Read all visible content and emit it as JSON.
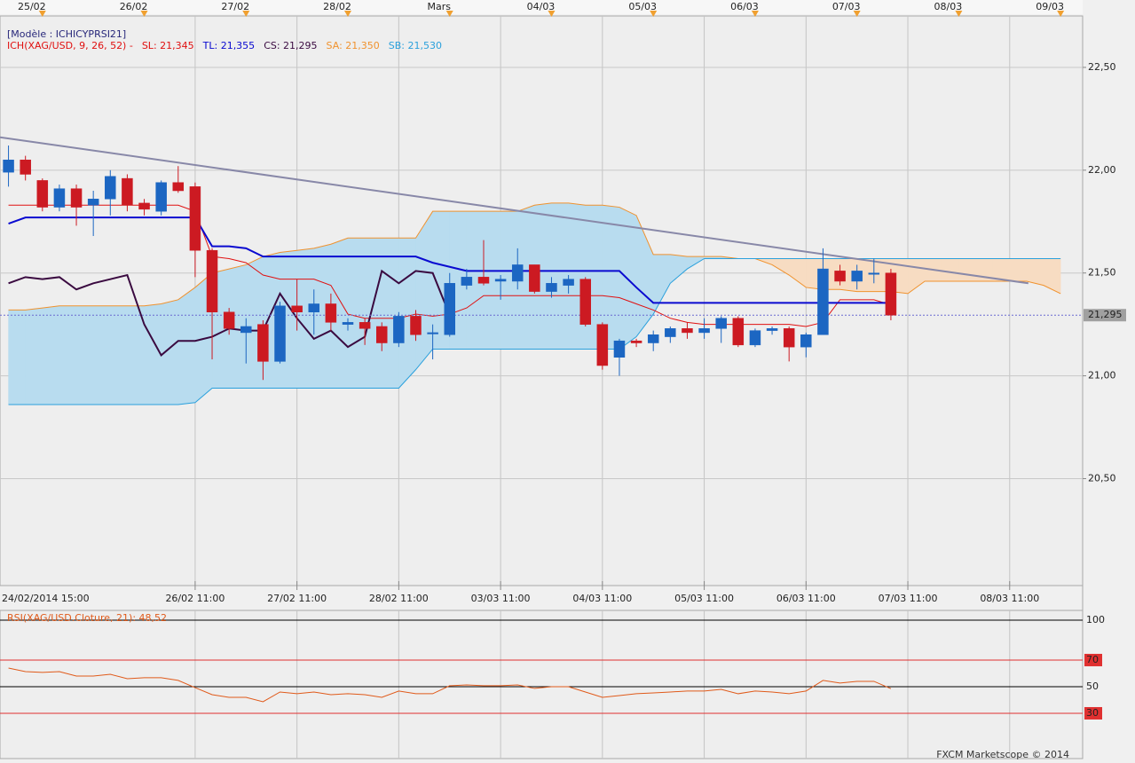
{
  "chart_data": [
    {
      "type": "candlestick",
      "legend_title": "[Modèle : ICHICYPRSI21]",
      "legend_prefix": "ICH(XAG/USD, 9, 26, 52) -",
      "up_color": "#1c66c2",
      "down_color": "#cc1a22",
      "open": [
        21.99,
        22.05,
        21.95,
        21.82,
        21.91,
        21.83,
        21.86,
        21.96,
        21.84,
        21.8,
        21.94,
        21.92,
        21.61,
        21.31,
        21.21,
        21.25,
        21.07,
        21.34,
        21.31,
        21.35,
        21.25,
        21.26,
        21.24,
        21.16,
        21.29,
        21.21,
        21.2,
        21.44,
        21.48,
        21.46,
        21.46,
        21.54,
        21.41,
        21.44,
        21.47,
        21.25,
        21.09,
        21.17,
        21.16,
        21.19,
        21.23,
        21.21,
        21.23,
        21.28,
        21.15,
        21.22,
        21.23,
        21.14,
        21.2,
        21.51,
        21.46,
        21.5,
        21.5
      ],
      "high": [
        22.12,
        22.07,
        21.96,
        21.93,
        21.93,
        21.9,
        22.0,
        21.98,
        21.86,
        21.95,
        22.02,
        21.94,
        21.62,
        21.33,
        21.28,
        21.27,
        21.36,
        21.47,
        21.42,
        21.4,
        21.28,
        21.28,
        21.26,
        21.31,
        21.32,
        21.25,
        21.5,
        21.52,
        21.66,
        21.49,
        21.62,
        21.54,
        21.48,
        21.49,
        21.48,
        21.26,
        21.18,
        21.18,
        21.22,
        21.24,
        21.26,
        21.28,
        21.29,
        21.29,
        21.23,
        21.24,
        21.24,
        21.21,
        21.62,
        21.54,
        21.54,
        21.57,
        21.52
      ],
      "low": [
        21.92,
        21.95,
        21.8,
        21.8,
        21.73,
        21.68,
        21.78,
        21.8,
        21.78,
        21.78,
        21.89,
        21.48,
        21.08,
        21.2,
        21.06,
        20.98,
        21.06,
        21.22,
        21.2,
        21.22,
        21.22,
        21.15,
        21.12,
        21.14,
        21.17,
        21.08,
        21.19,
        21.42,
        21.44,
        21.37,
        21.42,
        21.4,
        21.38,
        21.4,
        21.24,
        21.03,
        21.0,
        21.14,
        21.12,
        21.16,
        21.18,
        21.18,
        21.16,
        21.14,
        21.14,
        21.2,
        21.07,
        21.09,
        21.2,
        21.44,
        21.42,
        21.45,
        21.27
      ],
      "close": [
        22.05,
        21.98,
        21.82,
        21.91,
        21.82,
        21.86,
        21.97,
        21.83,
        21.81,
        21.94,
        21.9,
        21.61,
        21.31,
        21.23,
        21.24,
        21.07,
        21.34,
        21.31,
        21.35,
        21.26,
        21.26,
        21.23,
        21.16,
        21.29,
        21.2,
        21.21,
        21.45,
        21.48,
        21.45,
        21.47,
        21.54,
        21.41,
        21.45,
        21.47,
        21.25,
        21.05,
        21.17,
        21.16,
        21.2,
        21.23,
        21.21,
        21.23,
        21.28,
        21.15,
        21.22,
        21.23,
        21.14,
        21.2,
        21.52,
        21.46,
        21.51,
        21.5,
        21.295
      ],
      "series": [
        {
          "name": "SL: 21,345",
          "color": "#e01010",
          "width": 1,
          "values": [
            21.83,
            21.83,
            21.83,
            21.83,
            21.83,
            21.83,
            21.83,
            21.83,
            21.83,
            21.83,
            21.83,
            21.8,
            21.58,
            21.57,
            21.55,
            21.49,
            21.47,
            21.47,
            21.47,
            21.44,
            21.3,
            21.28,
            21.28,
            21.28,
            21.3,
            21.29,
            21.3,
            21.33,
            21.39,
            21.39,
            21.39,
            21.39,
            21.39,
            21.39,
            21.39,
            21.39,
            21.38,
            21.35,
            21.32,
            21.28,
            21.26,
            21.25,
            21.25,
            21.25,
            21.25,
            21.25,
            21.25,
            21.24,
            21.26,
            21.37,
            21.37,
            21.37,
            21.345
          ]
        },
        {
          "name": "TL: 21,355",
          "color": "#0a0ad0",
          "width": 2,
          "values": [
            21.74,
            21.77,
            21.77,
            21.77,
            21.77,
            21.77,
            21.77,
            21.77,
            21.77,
            21.77,
            21.77,
            21.77,
            21.63,
            21.63,
            21.62,
            21.58,
            21.58,
            21.58,
            21.58,
            21.58,
            21.58,
            21.58,
            21.58,
            21.58,
            21.58,
            21.55,
            21.53,
            21.51,
            21.51,
            21.51,
            21.51,
            21.51,
            21.51,
            21.51,
            21.51,
            21.51,
            21.51,
            21.43,
            21.355,
            21.355,
            21.355,
            21.355,
            21.355,
            21.355,
            21.355,
            21.355,
            21.355,
            21.355,
            21.355,
            21.355,
            21.355,
            21.355,
            21.355
          ]
        },
        {
          "name": "CS: 21,295",
          "color": "#3a0a40",
          "width": 2,
          "values": [
            21.45,
            21.48,
            21.47,
            21.48,
            21.42,
            21.45,
            21.47,
            21.49,
            21.25,
            21.1,
            21.17,
            21.17,
            21.19,
            21.23,
            21.22,
            21.22,
            21.4,
            21.28,
            21.18,
            21.22,
            21.14,
            21.19,
            21.51,
            21.45,
            21.51,
            21.5,
            21.295
          ]
        },
        {
          "name": "SA: 21,350",
          "color": "#f0922e",
          "width": 1,
          "values": [
            21.32,
            21.32,
            21.33,
            21.34,
            21.34,
            21.34,
            21.34,
            21.34,
            21.34,
            21.35,
            21.37,
            21.43,
            21.5,
            21.52,
            21.54,
            21.58,
            21.6,
            21.61,
            21.62,
            21.64,
            21.67,
            21.67,
            21.67,
            21.67,
            21.67,
            21.8,
            21.8,
            21.8,
            21.8,
            21.8,
            21.8,
            21.83,
            21.84,
            21.84,
            21.83,
            21.83,
            21.82,
            21.78,
            21.59,
            21.59,
            21.58,
            21.58,
            21.58,
            21.57,
            21.57,
            21.54,
            21.49,
            21.43,
            21.42,
            21.42,
            21.41,
            21.41,
            21.41,
            21.4,
            21.46,
            21.46,
            21.46,
            21.46,
            21.46,
            21.46,
            21.46,
            21.44,
            21.4
          ]
        },
        {
          "name": "SB: 21,530",
          "color": "#2aa0dc",
          "width": 1,
          "values": [
            20.86,
            20.86,
            20.86,
            20.86,
            20.86,
            20.86,
            20.86,
            20.86,
            20.86,
            20.86,
            20.86,
            20.87,
            20.94,
            20.94,
            20.94,
            20.94,
            20.94,
            20.94,
            20.94,
            20.94,
            20.94,
            20.94,
            20.94,
            20.94,
            21.03,
            21.13,
            21.13,
            21.13,
            21.13,
            21.13,
            21.13,
            21.13,
            21.13,
            21.13,
            21.13,
            21.13,
            21.13,
            21.19,
            21.3,
            21.45,
            21.52,
            21.57,
            21.57,
            21.57,
            21.57,
            21.57,
            21.57,
            21.57,
            21.57,
            21.57,
            21.57,
            21.57,
            21.57,
            21.57,
            21.57,
            21.57,
            21.57,
            21.57,
            21.57,
            21.57,
            21.57,
            21.57,
            21.57
          ]
        }
      ],
      "cloud_colors": {
        "up": "#b8dcef",
        "down": "#f7dcc2"
      },
      "trendline": {
        "x": [
          -0.5,
          60.1
        ],
        "values": [
          22.16,
          21.45
        ],
        "color": "#8888a8"
      },
      "last_price": {
        "value": 21.295,
        "label": "21,295",
        "color": "#6a6ad0"
      },
      "xlim": [
        -0.5,
        63.3
      ],
      "ylim": [
        19.98,
        22.75
      ],
      "yticks": [
        {
          "value": 20.5,
          "label": "20,50"
        },
        {
          "value": 21,
          "label": "21,00"
        },
        {
          "value": 21.5,
          "label": "21,50"
        },
        {
          "value": 22,
          "label": "22,00"
        },
        {
          "value": 22.5,
          "label": "22,50"
        }
      ],
      "xticks": [
        {
          "value": 0,
          "label": "24/02/2014 15:00"
        },
        {
          "value": 11,
          "label": "26/02 11:00"
        },
        {
          "value": 17,
          "label": "27/02 11:00"
        },
        {
          "value": 23,
          "label": "28/02 11:00"
        },
        {
          "value": 29,
          "label": "03/03 11:00"
        },
        {
          "value": 35,
          "label": "04/03 11:00"
        },
        {
          "value": 41,
          "label": "05/03 11:00"
        },
        {
          "value": 47,
          "label": "06/03 11:00"
        },
        {
          "value": 53,
          "label": "07/03 11:00"
        },
        {
          "value": 59,
          "label": "08/03 11:00"
        }
      ],
      "top_xticks": [
        {
          "value": 2,
          "label": "25/02"
        },
        {
          "value": 8,
          "label": "26/02"
        },
        {
          "value": 14,
          "label": "27/02"
        },
        {
          "value": 20,
          "label": "28/02"
        },
        {
          "value": 26,
          "label": "Mars"
        },
        {
          "value": 32,
          "label": "04/03"
        },
        {
          "value": 38,
          "label": "05/03"
        },
        {
          "value": 44,
          "label": "06/03"
        },
        {
          "value": 50,
          "label": "07/03"
        },
        {
          "value": 56,
          "label": "08/03"
        },
        {
          "value": 62,
          "label": "09/03"
        }
      ],
      "grid": true
    },
    {
      "type": "line",
      "title": "RSI(XAG/USD.Cloture, 21): 48,52",
      "color": "#e05a1a",
      "values": [
        64,
        61.3,
        60.7,
        61.3,
        58,
        58,
        59.3,
        56,
        56.7,
        56.7,
        54.7,
        49.3,
        44,
        42,
        42,
        38.7,
        46,
        44.7,
        46,
        44,
        44.7,
        44,
        42,
        46.7,
        44.7,
        44.7,
        50.7,
        51.3,
        50.7,
        50.7,
        51.3,
        48.7,
        50,
        50,
        46,
        42,
        43.3,
        44.7,
        45.3,
        46,
        46.7,
        46.7,
        48,
        44.7,
        46.7,
        46,
        44.7,
        46.7,
        54.7,
        52.7,
        54,
        54,
        48.52
      ],
      "xlim": [
        -0.5,
        63.3
      ],
      "ylim": [
        -4,
        107.3
      ],
      "yticks": [
        30,
        50,
        70,
        100
      ],
      "ytick_colors": [
        "#e03030",
        "#000000",
        "#e03030",
        "#000000"
      ]
    }
  ],
  "footer": "FXCM Marketscope © 2014"
}
